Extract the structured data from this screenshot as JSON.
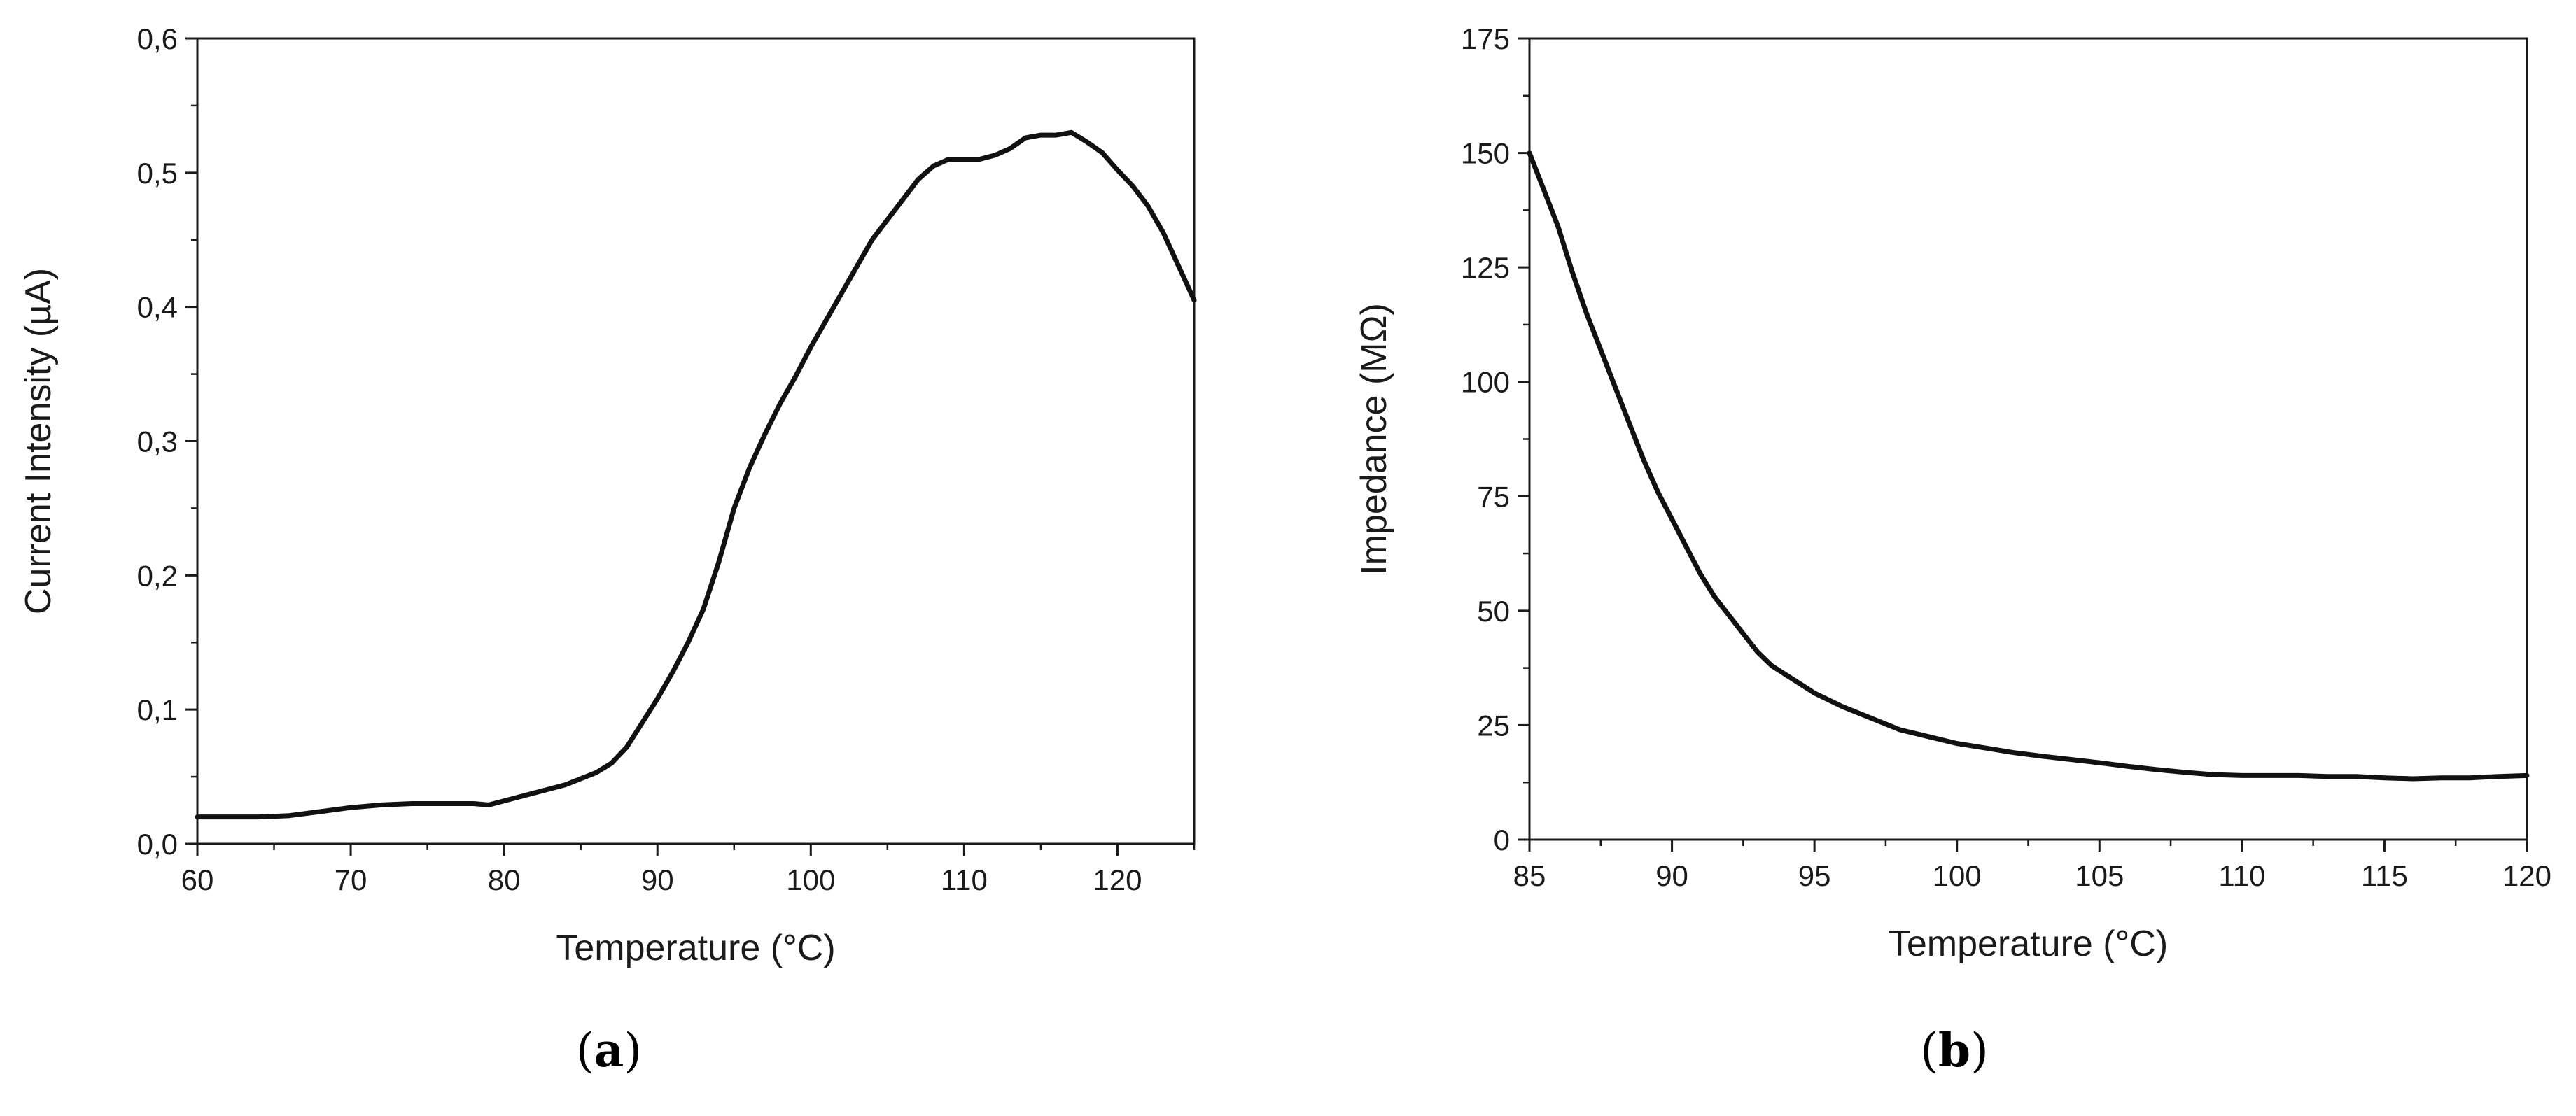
{
  "chart_data": [
    {
      "type": "line",
      "panel_label": "a",
      "xlabel": "Temperature (°C)",
      "ylabel": "Current Intensity (µA)",
      "xlim": [
        60,
        125
      ],
      "ylim": [
        0,
        0.6
      ],
      "x_ticks": [
        60,
        70,
        80,
        90,
        100,
        110,
        120
      ],
      "y_ticks": [
        "0,0",
        "0,1",
        "0,2",
        "0,3",
        "0,4",
        "0,5",
        "0,6"
      ],
      "y_tick_values": [
        0,
        0.1,
        0.2,
        0.3,
        0.4,
        0.5,
        0.6
      ],
      "x_minor_step": 5,
      "y_minor_step": 0.05,
      "grid": false,
      "line_color": "#111111",
      "series": [
        {
          "x": [
            60,
            62,
            64,
            66,
            68,
            70,
            72,
            74,
            76,
            78,
            79,
            80,
            82,
            84,
            86,
            87,
            88,
            89,
            90,
            91,
            92,
            93,
            94,
            95,
            96,
            97,
            98,
            99,
            100,
            101,
            102,
            103,
            104,
            105,
            106,
            107,
            108,
            109,
            110,
            111,
            112,
            113,
            114,
            115,
            116,
            117,
            118,
            119,
            120,
            121,
            122,
            123,
            124,
            125
          ],
          "y": [
            0.02,
            0.02,
            0.02,
            0.021,
            0.024,
            0.027,
            0.029,
            0.03,
            0.03,
            0.03,
            0.029,
            0.032,
            0.038,
            0.044,
            0.053,
            0.06,
            0.072,
            0.09,
            0.108,
            0.128,
            0.15,
            0.175,
            0.21,
            0.25,
            0.28,
            0.305,
            0.328,
            0.348,
            0.37,
            0.39,
            0.41,
            0.43,
            0.45,
            0.465,
            0.48,
            0.495,
            0.505,
            0.51,
            0.51,
            0.51,
            0.513,
            0.518,
            0.526,
            0.528,
            0.528,
            0.53,
            0.523,
            0.515,
            0.502,
            0.49,
            0.475,
            0.455,
            0.43,
            0.405
          ]
        }
      ]
    },
    {
      "type": "line",
      "panel_label": "b",
      "xlabel": "Temperature (°C)",
      "ylabel": "Impedance (MΩ)",
      "xlim": [
        85,
        120
      ],
      "ylim": [
        0,
        175
      ],
      "x_ticks": [
        85,
        90,
        95,
        100,
        105,
        110,
        115,
        120
      ],
      "y_ticks": [
        "0",
        "25",
        "50",
        "75",
        "100",
        "125",
        "150",
        "175"
      ],
      "y_tick_values": [
        0,
        25,
        50,
        75,
        100,
        125,
        150,
        175
      ],
      "x_minor_step": 2.5,
      "y_minor_step": 12.5,
      "grid": false,
      "line_color": "#111111",
      "series": [
        {
          "x": [
            85,
            85.5,
            86,
            86.5,
            87,
            87.5,
            88,
            88.5,
            89,
            89.5,
            90,
            90.5,
            91,
            91.5,
            92,
            92.5,
            93,
            93.5,
            94,
            94.5,
            95,
            96,
            97,
            98,
            99,
            100,
            101,
            102,
            103,
            104,
            105,
            106,
            107,
            108,
            109,
            110,
            111,
            112,
            113,
            114,
            115,
            116,
            117,
            118,
            119,
            120
          ],
          "y": [
            150,
            142,
            134,
            124,
            115,
            107,
            99,
            91,
            83,
            76,
            70,
            64,
            58,
            53,
            49,
            45,
            41,
            38,
            36,
            34,
            32,
            29,
            26.5,
            24,
            22.5,
            21,
            20,
            19,
            18.2,
            17.5,
            16.8,
            16,
            15.3,
            14.7,
            14.2,
            14,
            14,
            14,
            13.8,
            13.8,
            13.5,
            13.3,
            13.5,
            13.5,
            13.8,
            14
          ]
        }
      ]
    }
  ]
}
